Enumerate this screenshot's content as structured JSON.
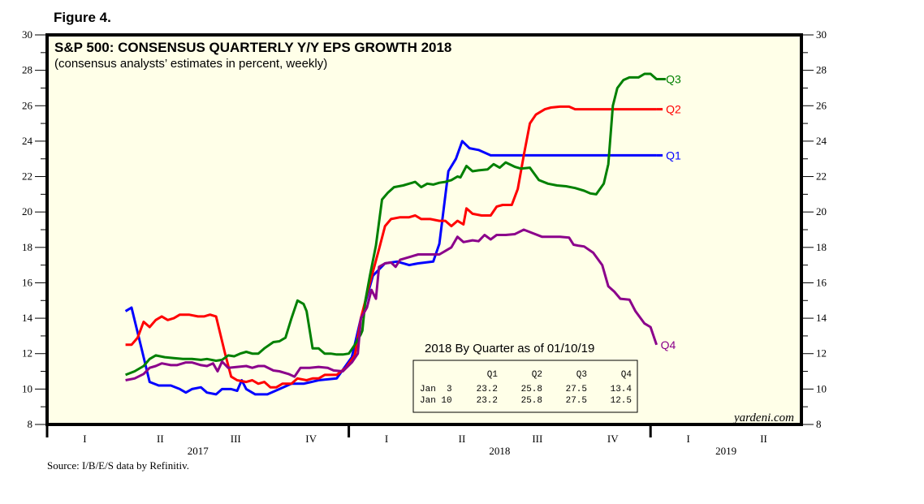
{
  "figure_label": "Figure 4.",
  "source": "Source: I/B/E/S data by Refinitiv.",
  "watermark": "yardeni.com",
  "colors": {
    "background": "#FFFFE8",
    "Q1": "#0000FF",
    "Q2": "#FF0000",
    "Q3": "#008000",
    "Q4": "#8B008B"
  },
  "table": {
    "title": "2018 By Quarter as of 01/10/19",
    "headers": [
      "",
      "Q1",
      "Q2",
      "Q3",
      "Q4"
    ],
    "rows": [
      [
        "Jan  3",
        "23.2",
        "25.8",
        "27.5",
        "13.4"
      ],
      [
        "Jan 10",
        "23.2",
        "25.8",
        "27.5",
        "12.5"
      ]
    ]
  },
  "chart_data": {
    "type": "line",
    "title": "S&P 500: CONSENSUS QUARTERLY Y/Y EPS GROWTH 2018",
    "subtitle": "(consensus analysts’ estimates in percent, weekly)",
    "xlabel": "",
    "ylabel": "",
    "xlim": [
      2017.0,
      2019.5
    ],
    "ylim": [
      8,
      30
    ],
    "yticks": [
      8,
      10,
      12,
      14,
      16,
      18,
      20,
      22,
      24,
      26,
      28,
      30
    ],
    "y_minor_step": 1,
    "x_quarter_ticks": [
      {
        "label": "I",
        "x": 2017.125
      },
      {
        "label": "II",
        "x": 2017.375
      },
      {
        "label": "III",
        "x": 2017.625
      },
      {
        "label": "IV",
        "x": 2017.875
      },
      {
        "label": "I",
        "x": 2018.125
      },
      {
        "label": "II",
        "x": 2018.375
      },
      {
        "label": "III",
        "x": 2018.625
      },
      {
        "label": "IV",
        "x": 2018.875
      },
      {
        "label": "I",
        "x": 2019.125
      },
      {
        "label": "II",
        "x": 2019.375
      }
    ],
    "x_year_ticks": [
      {
        "label": "2017",
        "x": 2017.5
      },
      {
        "label": "2018",
        "x": 2018.5
      },
      {
        "label": "2019",
        "x": 2019.25
      }
    ],
    "x_year_boundaries": [
      2017.0,
      2018.0,
      2019.0
    ],
    "grid": false,
    "legend": "end-of-line labels",
    "series": [
      {
        "name": "Q1",
        "points": [
          [
            2017.26,
            14.4
          ],
          [
            2017.28,
            14.6
          ],
          [
            2017.31,
            12.5
          ],
          [
            2017.34,
            10.4
          ],
          [
            2017.37,
            10.2
          ],
          [
            2017.41,
            10.2
          ],
          [
            2017.44,
            10.0
          ],
          [
            2017.46,
            9.8
          ],
          [
            2017.48,
            10.0
          ],
          [
            2017.51,
            10.1
          ],
          [
            2017.53,
            9.8
          ],
          [
            2017.56,
            9.7
          ],
          [
            2017.58,
            10.0
          ],
          [
            2017.61,
            10.0
          ],
          [
            2017.63,
            9.9
          ],
          [
            2017.645,
            10.5
          ],
          [
            2017.66,
            10.0
          ],
          [
            2017.69,
            9.7
          ],
          [
            2017.73,
            9.7
          ],
          [
            2017.77,
            10.0
          ],
          [
            2017.81,
            10.3
          ],
          [
            2017.85,
            10.3
          ],
          [
            2017.9,
            10.5
          ],
          [
            2017.96,
            10.6
          ],
          [
            2018.01,
            11.8
          ],
          [
            2018.04,
            14.0
          ],
          [
            2018.08,
            16.4
          ],
          [
            2018.12,
            17.1
          ],
          [
            2018.16,
            17.2
          ],
          [
            2018.2,
            17.0
          ],
          [
            2018.23,
            17.1
          ],
          [
            2018.28,
            17.2
          ],
          [
            2018.3,
            18.2
          ],
          [
            2018.33,
            22.3
          ],
          [
            2018.355,
            23.0
          ],
          [
            2018.376,
            24.0
          ],
          [
            2018.4,
            23.6
          ],
          [
            2018.43,
            23.5
          ],
          [
            2018.47,
            23.2
          ],
          [
            2018.5,
            23.2
          ],
          [
            2019.02,
            23.2
          ]
        ]
      },
      {
        "name": "Q2",
        "points": [
          [
            2017.26,
            12.5
          ],
          [
            2017.28,
            12.5
          ],
          [
            2017.3,
            12.9
          ],
          [
            2017.32,
            13.8
          ],
          [
            2017.34,
            13.5
          ],
          [
            2017.36,
            13.9
          ],
          [
            2017.38,
            14.1
          ],
          [
            2017.4,
            13.9
          ],
          [
            2017.42,
            14.0
          ],
          [
            2017.44,
            14.2
          ],
          [
            2017.47,
            14.2
          ],
          [
            2017.5,
            14.1
          ],
          [
            2017.52,
            14.1
          ],
          [
            2017.54,
            14.2
          ],
          [
            2017.56,
            14.1
          ],
          [
            2017.59,
            12.0
          ],
          [
            2017.61,
            10.7
          ],
          [
            2017.63,
            10.5
          ],
          [
            2017.66,
            10.4
          ],
          [
            2017.68,
            10.5
          ],
          [
            2017.7,
            10.3
          ],
          [
            2017.72,
            10.4
          ],
          [
            2017.74,
            10.1
          ],
          [
            2017.76,
            10.1
          ],
          [
            2017.78,
            10.3
          ],
          [
            2017.81,
            10.3
          ],
          [
            2017.83,
            10.6
          ],
          [
            2017.86,
            10.5
          ],
          [
            2017.88,
            10.6
          ],
          [
            2017.9,
            10.6
          ],
          [
            2017.92,
            10.8
          ],
          [
            2017.96,
            10.8
          ],
          [
            2017.99,
            11.2
          ],
          [
            2018.02,
            11.9
          ],
          [
            2018.04,
            14.0
          ],
          [
            2018.07,
            16.0
          ],
          [
            2018.1,
            17.9
          ],
          [
            2018.12,
            19.2
          ],
          [
            2018.14,
            19.6
          ],
          [
            2018.17,
            19.7
          ],
          [
            2018.2,
            19.7
          ],
          [
            2018.22,
            19.8
          ],
          [
            2018.24,
            19.6
          ],
          [
            2018.27,
            19.6
          ],
          [
            2018.3,
            19.5
          ],
          [
            2018.32,
            19.5
          ],
          [
            2018.34,
            19.2
          ],
          [
            2018.36,
            19.5
          ],
          [
            2018.38,
            19.3
          ],
          [
            2018.39,
            20.2
          ],
          [
            2018.41,
            19.9
          ],
          [
            2018.44,
            19.8
          ],
          [
            2018.47,
            19.8
          ],
          [
            2018.49,
            20.3
          ],
          [
            2018.51,
            20.4
          ],
          [
            2018.54,
            20.4
          ],
          [
            2018.56,
            21.3
          ],
          [
            2018.58,
            23.2
          ],
          [
            2018.6,
            25.0
          ],
          [
            2018.62,
            25.5
          ],
          [
            2018.65,
            25.8
          ],
          [
            2018.67,
            25.9
          ],
          [
            2018.7,
            25.95
          ],
          [
            2018.73,
            25.95
          ],
          [
            2018.75,
            25.8
          ],
          [
            2019.02,
            25.8
          ]
        ]
      },
      {
        "name": "Q3",
        "points": [
          [
            2017.26,
            10.8
          ],
          [
            2017.29,
            11.0
          ],
          [
            2017.32,
            11.3
          ],
          [
            2017.34,
            11.7
          ],
          [
            2017.36,
            11.9
          ],
          [
            2017.39,
            11.8
          ],
          [
            2017.42,
            11.75
          ],
          [
            2017.45,
            11.7
          ],
          [
            2017.48,
            11.7
          ],
          [
            2017.51,
            11.65
          ],
          [
            2017.53,
            11.7
          ],
          [
            2017.56,
            11.6
          ],
          [
            2017.58,
            11.65
          ],
          [
            2017.6,
            11.9
          ],
          [
            2017.62,
            11.85
          ],
          [
            2017.64,
            12.0
          ],
          [
            2017.66,
            12.1
          ],
          [
            2017.68,
            12.0
          ],
          [
            2017.7,
            12.0
          ],
          [
            2017.72,
            12.3
          ],
          [
            2017.75,
            12.65
          ],
          [
            2017.77,
            12.7
          ],
          [
            2017.79,
            12.9
          ],
          [
            2017.81,
            14.0
          ],
          [
            2017.83,
            15.0
          ],
          [
            2017.85,
            14.8
          ],
          [
            2017.86,
            14.4
          ],
          [
            2017.88,
            12.3
          ],
          [
            2017.9,
            12.3
          ],
          [
            2017.92,
            12.0
          ],
          [
            2017.94,
            12.0
          ],
          [
            2017.96,
            11.95
          ],
          [
            2017.98,
            11.95
          ],
          [
            2018.0,
            12.0
          ],
          [
            2018.02,
            12.5
          ],
          [
            2018.04,
            13.1
          ],
          [
            2018.045,
            13.3
          ],
          [
            2018.055,
            15.0
          ],
          [
            2018.07,
            16.4
          ],
          [
            2018.09,
            18.1
          ],
          [
            2018.11,
            20.7
          ],
          [
            2018.13,
            21.1
          ],
          [
            2018.15,
            21.4
          ],
          [
            2018.18,
            21.5
          ],
          [
            2018.2,
            21.6
          ],
          [
            2018.22,
            21.7
          ],
          [
            2018.24,
            21.4
          ],
          [
            2018.26,
            21.6
          ],
          [
            2018.28,
            21.55
          ],
          [
            2018.3,
            21.65
          ],
          [
            2018.32,
            21.7
          ],
          [
            2018.34,
            21.8
          ],
          [
            2018.36,
            22.0
          ],
          [
            2018.37,
            21.95
          ],
          [
            2018.39,
            22.6
          ],
          [
            2018.41,
            22.3
          ],
          [
            2018.43,
            22.35
          ],
          [
            2018.46,
            22.4
          ],
          [
            2018.48,
            22.7
          ],
          [
            2018.5,
            22.5
          ],
          [
            2018.52,
            22.8
          ],
          [
            2018.55,
            22.55
          ],
          [
            2018.57,
            22.45
          ],
          [
            2018.6,
            22.5
          ],
          [
            2018.63,
            21.8
          ],
          [
            2018.66,
            21.6
          ],
          [
            2018.69,
            21.5
          ],
          [
            2018.72,
            21.45
          ],
          [
            2018.75,
            21.35
          ],
          [
            2018.78,
            21.2
          ],
          [
            2018.8,
            21.05
          ],
          [
            2018.82,
            21.0
          ],
          [
            2018.845,
            21.6
          ],
          [
            2018.86,
            22.7
          ],
          [
            2018.875,
            26.0
          ],
          [
            2018.89,
            27.0
          ],
          [
            2018.91,
            27.45
          ],
          [
            2018.93,
            27.6
          ],
          [
            2018.96,
            27.6
          ],
          [
            2018.98,
            27.8
          ],
          [
            2019.0,
            27.8
          ],
          [
            2019.02,
            27.5
          ],
          [
            2019.05,
            27.5
          ]
        ]
      },
      {
        "name": "Q4",
        "points": [
          [
            2017.26,
            10.5
          ],
          [
            2017.29,
            10.6
          ],
          [
            2017.32,
            10.85
          ],
          [
            2017.34,
            11.2
          ],
          [
            2017.36,
            11.3
          ],
          [
            2017.38,
            11.45
          ],
          [
            2017.41,
            11.35
          ],
          [
            2017.43,
            11.35
          ],
          [
            2017.46,
            11.5
          ],
          [
            2017.48,
            11.5
          ],
          [
            2017.51,
            11.35
          ],
          [
            2017.53,
            11.3
          ],
          [
            2017.55,
            11.45
          ],
          [
            2017.565,
            11.0
          ],
          [
            2017.58,
            11.55
          ],
          [
            2017.6,
            11.2
          ],
          [
            2017.63,
            11.25
          ],
          [
            2017.66,
            11.3
          ],
          [
            2017.68,
            11.2
          ],
          [
            2017.7,
            11.3
          ],
          [
            2017.72,
            11.3
          ],
          [
            2017.75,
            11.05
          ],
          [
            2017.77,
            11.0
          ],
          [
            2017.8,
            10.85
          ],
          [
            2017.82,
            10.7
          ],
          [
            2017.84,
            11.2
          ],
          [
            2017.87,
            11.2
          ],
          [
            2017.9,
            11.25
          ],
          [
            2017.93,
            11.2
          ],
          [
            2017.95,
            11.05
          ],
          [
            2017.98,
            11.0
          ],
          [
            2018.01,
            11.5
          ],
          [
            2018.03,
            12.0
          ],
          [
            2018.04,
            14.0
          ],
          [
            2018.06,
            14.6
          ],
          [
            2018.075,
            15.6
          ],
          [
            2018.09,
            15.1
          ],
          [
            2018.1,
            16.9
          ],
          [
            2018.12,
            17.1
          ],
          [
            2018.14,
            17.15
          ],
          [
            2018.155,
            16.9
          ],
          [
            2018.17,
            17.3
          ],
          [
            2018.2,
            17.45
          ],
          [
            2018.23,
            17.6
          ],
          [
            2018.27,
            17.6
          ],
          [
            2018.3,
            17.6
          ],
          [
            2018.32,
            17.8
          ],
          [
            2018.34,
            18.0
          ],
          [
            2018.36,
            18.6
          ],
          [
            2018.38,
            18.3
          ],
          [
            2018.41,
            18.4
          ],
          [
            2018.43,
            18.35
          ],
          [
            2018.45,
            18.7
          ],
          [
            2018.47,
            18.45
          ],
          [
            2018.49,
            18.7
          ],
          [
            2018.52,
            18.7
          ],
          [
            2018.55,
            18.75
          ],
          [
            2018.58,
            19.0
          ],
          [
            2018.61,
            18.8
          ],
          [
            2018.64,
            18.6
          ],
          [
            2018.67,
            18.6
          ],
          [
            2018.7,
            18.6
          ],
          [
            2018.73,
            18.55
          ],
          [
            2018.745,
            18.15
          ],
          [
            2018.76,
            18.1
          ],
          [
            2018.78,
            18.05
          ],
          [
            2018.81,
            17.7
          ],
          [
            2018.84,
            17.0
          ],
          [
            2018.86,
            15.8
          ],
          [
            2018.88,
            15.5
          ],
          [
            2018.9,
            15.1
          ],
          [
            2018.93,
            15.05
          ],
          [
            2018.95,
            14.4
          ],
          [
            2018.98,
            13.7
          ],
          [
            2019.0,
            13.5
          ],
          [
            2019.02,
            12.5
          ]
        ]
      }
    ]
  }
}
